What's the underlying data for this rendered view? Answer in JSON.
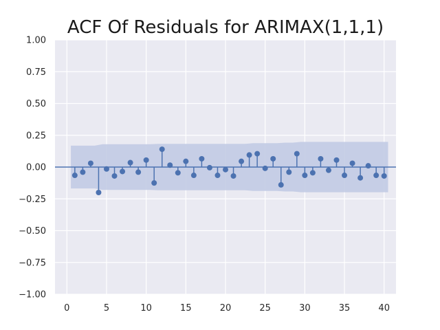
{
  "chart_data": {
    "type": "stem",
    "title": "ACF Of Residuals for ARIMAX(1,1,1)",
    "xlabel": "",
    "ylabel": "",
    "xlim": [
      -1.5,
      41.5
    ],
    "ylim": [
      -1.0,
      1.0
    ],
    "xticks": [
      0,
      5,
      10,
      15,
      20,
      25,
      30,
      35,
      40
    ],
    "xtick_labels": [
      "0",
      "5",
      "10",
      "15",
      "20",
      "25",
      "30",
      "35",
      "40"
    ],
    "yticks": [
      1.0,
      0.75,
      0.5,
      0.25,
      0.0,
      -0.25,
      -0.5,
      -0.75,
      -1.0
    ],
    "ytick_labels": [
      "1.00",
      "0.75",
      "0.50",
      "0.25",
      "0.00",
      "−0.25",
      "−0.50",
      "−0.75",
      "−1.00"
    ],
    "grid": true,
    "colors": {
      "stem": "#4c72b0",
      "band": "#c2cbe4",
      "background": "#eaeaf2",
      "grid": "#ffffff"
    },
    "lags": [
      1,
      2,
      3,
      4,
      5,
      6,
      7,
      8,
      9,
      10,
      11,
      12,
      13,
      14,
      15,
      16,
      17,
      18,
      19,
      20,
      21,
      22,
      23,
      24,
      25,
      26,
      27,
      28,
      29,
      30,
      31,
      32,
      33,
      34,
      35,
      36,
      37,
      38,
      39,
      40
    ],
    "acf": [
      -0.065,
      -0.04,
      0.03,
      -0.2,
      -0.015,
      -0.07,
      -0.035,
      0.035,
      -0.04,
      0.055,
      -0.125,
      0.14,
      0.015,
      -0.045,
      0.045,
      -0.065,
      0.065,
      -0.005,
      -0.065,
      -0.02,
      -0.07,
      0.045,
      0.095,
      0.105,
      -0.01,
      0.065,
      -0.14,
      -0.04,
      0.105,
      -0.065,
      -0.045,
      0.065,
      -0.025,
      0.055,
      -0.065,
      0.03,
      -0.085,
      0.01,
      -0.065,
      -0.07
    ],
    "confidence_band": {
      "x": [
        0.5,
        3.5,
        4.5,
        10.5,
        11.5,
        22.5,
        23.5,
        26.5,
        27.5,
        28.5,
        29.5,
        40.5
      ],
      "upper": [
        0.168,
        0.168,
        0.18,
        0.18,
        0.182,
        0.182,
        0.188,
        0.188,
        0.192,
        0.192,
        0.198,
        0.198
      ]
    }
  }
}
